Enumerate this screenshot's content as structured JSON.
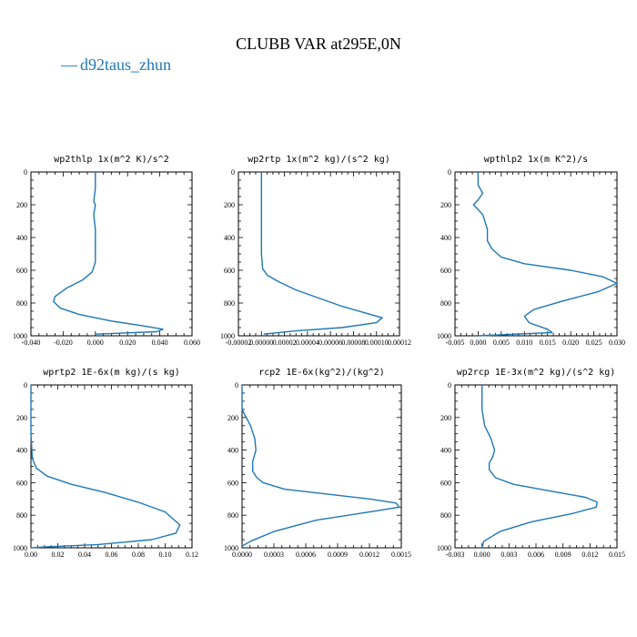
{
  "figure": {
    "title": "CLUBB VAR at295E,0N",
    "legend": {
      "label": "d92taus_zhun",
      "marker": "—"
    },
    "line_color": "#1f77b4"
  },
  "chart_data": [
    {
      "type": "line",
      "title": "wp2thlp   1x(m^2 K)/s^2",
      "xlim": [
        -0.04,
        0.06
      ],
      "ylim": [
        0,
        1000
      ],
      "y_inverted": true,
      "xticks": [
        "-0.040",
        "-0.020",
        "0.000",
        "0.020",
        "0.040",
        "0.060"
      ],
      "yticks": [
        "0",
        "200",
        "400",
        "600",
        "800",
        "1000"
      ],
      "series": [
        {
          "x": [
            0.0,
            0.0,
            -0.001,
            0.0,
            -0.001,
            0.0,
            0.0,
            0.0,
            -0.002,
            -0.008,
            -0.018,
            -0.025,
            -0.026,
            -0.022,
            -0.01,
            0.01,
            0.03,
            0.042,
            0.038,
            0.0
          ],
          "y": [
            0,
            100,
            180,
            200,
            260,
            350,
            450,
            550,
            610,
            660,
            710,
            760,
            790,
            830,
            870,
            910,
            940,
            960,
            975,
            990
          ]
        }
      ]
    },
    {
      "type": "line",
      "title": "wp2rtp   1x(m^2 kg)/(s^2 kg)",
      "xlim": [
        -2e-05,
        0.00012
      ],
      "ylim": [
        0,
        1000
      ],
      "y_inverted": true,
      "xticks": [
        "-0.00002",
        "0.00000",
        "0.00002",
        "0.00004",
        "0.00006",
        "0.00008",
        "0.00010",
        "0.00012"
      ],
      "yticks": [
        "0",
        "200",
        "400",
        "600",
        "800",
        "1000"
      ],
      "series": [
        {
          "x": [
            0.0,
            0.0,
            0.0,
            0.0,
            1e-06,
            5e-06,
            1.5e-05,
            3e-05,
            5e-05,
            7e-05,
            9e-05,
            0.000105,
            0.0001,
            7e-05,
            3e-05,
            2e-06
          ],
          "y": [
            0,
            100,
            300,
            500,
            590,
            630,
            670,
            720,
            770,
            820,
            860,
            890,
            920,
            950,
            970,
            990
          ]
        }
      ]
    },
    {
      "type": "line",
      "title": "wpthlp2   1x(m K^2)/s",
      "xlim": [
        -0.005,
        0.03
      ],
      "ylim": [
        0,
        1000
      ],
      "y_inverted": true,
      "xticks": [
        "-0.005",
        "0.000",
        "0.005",
        "0.010",
        "0.015",
        "0.020",
        "0.025",
        "0.030"
      ],
      "yticks": [
        "0",
        "200",
        "400",
        "600",
        "800",
        "1000"
      ],
      "series": [
        {
          "x": [
            0.0,
            0.0,
            0.001,
            0.0,
            -0.001,
            0.001,
            0.002,
            0.002,
            0.003,
            0.005,
            0.01,
            0.02,
            0.027,
            0.03,
            0.026,
            0.018,
            0.012,
            0.01,
            0.011,
            0.015,
            0.016,
            0.0
          ],
          "y": [
            0,
            80,
            130,
            170,
            200,
            260,
            350,
            420,
            470,
            520,
            560,
            600,
            640,
            680,
            730,
            790,
            840,
            880,
            920,
            960,
            980,
            1000
          ]
        }
      ]
    },
    {
      "type": "line",
      "title": "wprtp2   1E-6x(m kg)/(s kg)",
      "xlim": [
        0.0,
        0.12
      ],
      "ylim": [
        0,
        1000
      ],
      "y_inverted": true,
      "xticks": [
        "0.00",
        "0.02",
        "0.04",
        "0.06",
        "0.08",
        "0.10",
        "0.12"
      ],
      "yticks": [
        "0",
        "200",
        "400",
        "600",
        "800",
        "1000"
      ],
      "series": [
        {
          "x": [
            0.0,
            0.0,
            0.001,
            0.004,
            0.012,
            0.03,
            0.055,
            0.08,
            0.1,
            0.111,
            0.108,
            0.09,
            0.05,
            0.01,
            0.0
          ],
          "y": [
            0,
            300,
            450,
            510,
            560,
            610,
            660,
            720,
            780,
            860,
            910,
            950,
            980,
            995,
            1000
          ]
        }
      ]
    },
    {
      "type": "line",
      "title": "rcp2   1E-6x(kg^2)/(kg^2)",
      "xlim": [
        0.0,
        0.0015
      ],
      "ylim": [
        0,
        1000
      ],
      "y_inverted": true,
      "xticks": [
        "0.0000",
        "0.0003",
        "0.0006",
        "0.0009",
        "0.0012",
        "0.0015"
      ],
      "yticks": [
        "0",
        "200",
        "400",
        "600",
        "800",
        "1000"
      ],
      "series": [
        {
          "x": [
            0.0,
            0.0,
            8e-05,
            0.00012,
            0.00013,
            0.0001,
            0.0001,
            0.00014,
            0.0002,
            0.0004,
            0.0008,
            0.0012,
            0.00145,
            0.00148,
            0.0012,
            0.0007,
            0.0003,
            8e-05,
            0.0
          ],
          "y": [
            0,
            150,
            250,
            330,
            400,
            470,
            530,
            570,
            600,
            640,
            670,
            700,
            725,
            750,
            780,
            830,
            900,
            960,
            990
          ]
        }
      ]
    },
    {
      "type": "line",
      "title": "wp2rcp   1E-3x(m^2 kg)/(s^2 kg)",
      "xlim": [
        -0.003,
        0.015
      ],
      "ylim": [
        0,
        1000
      ],
      "y_inverted": true,
      "xticks": [
        "-0.003",
        "0.000",
        "0.003",
        "0.006",
        "0.009",
        "0.012",
        "0.015"
      ],
      "yticks": [
        "0",
        "200",
        "400",
        "600",
        "800",
        "1000"
      ],
      "series": [
        {
          "x": [
            0.0,
            0.0,
            0.0003,
            0.001,
            0.0014,
            0.0012,
            0.0008,
            0.0008,
            0.0015,
            0.0035,
            0.0075,
            0.0115,
            0.0128,
            0.0127,
            0.01,
            0.0055,
            0.002,
            0.0002,
            0.0
          ],
          "y": [
            0,
            150,
            250,
            330,
            400,
            440,
            480,
            520,
            570,
            610,
            650,
            690,
            720,
            750,
            790,
            840,
            900,
            960,
            1000
          ]
        }
      ]
    }
  ]
}
